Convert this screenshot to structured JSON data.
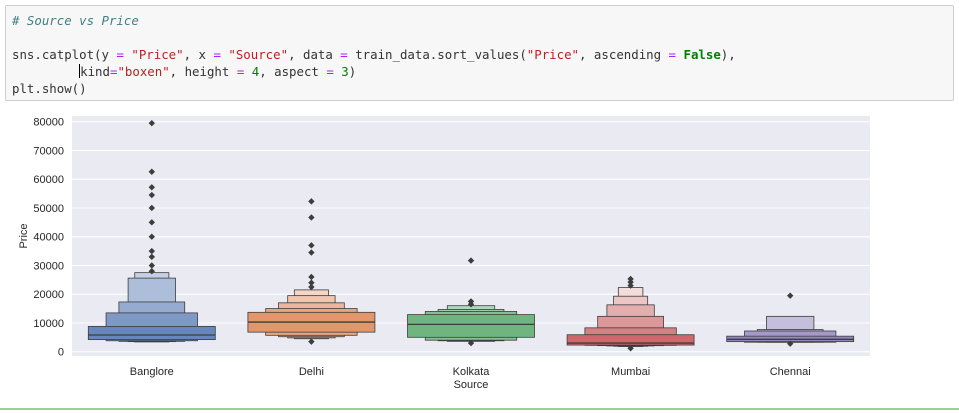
{
  "code": {
    "comment": "# Source vs Price",
    "line1": {
      "fn": "sns.catplot(y ",
      "eq": "=",
      "y_val": "\"Price\"",
      "x_part": ", x ",
      "x_val": "\"Source\"",
      "data_part": ", data ",
      "sort_part": " train_data.sort_values(",
      "sort_val": "\"Price\"",
      "asc_part": ", ascending ",
      "false_kw": "False",
      "tail": "),"
    },
    "line2": {
      "indent": "         ",
      "kind_part": "kind",
      "kind_val": "\"boxen\"",
      "height_part": ", height ",
      "height_val": "4",
      "aspect_part": ", aspect ",
      "aspect_val": "3",
      "tail": ")"
    },
    "line3": "plt.show()"
  },
  "chart_data": {
    "type": "boxen",
    "title": "",
    "xlabel": "Source",
    "ylabel": "Price",
    "ylim": [
      -1500,
      82000
    ],
    "yticks": [
      0,
      10000,
      20000,
      30000,
      40000,
      50000,
      60000,
      70000,
      80000
    ],
    "ytick_labels": [
      "0",
      "10000",
      "20000",
      "30000",
      "40000",
      "50000",
      "60000",
      "70000",
      "80000"
    ],
    "categories": [
      "Banglore",
      "Delhi",
      "Kolkata",
      "Mumbai",
      "Chennai"
    ],
    "colors": [
      "#4c72b0",
      "#dd8452",
      "#55a868",
      "#c44e52",
      "#8172b3"
    ],
    "groups": [
      {
        "name": "Banglore",
        "median": 5800,
        "boxes": [
          [
            4200,
            8800
          ],
          [
            3800,
            13500
          ],
          [
            3600,
            17300
          ],
          [
            3500,
            25600
          ],
          [
            3400,
            27500
          ]
        ],
        "outliers": [
          28000,
          30000,
          33000,
          35000,
          40000,
          45000,
          50000,
          54500,
          57200,
          62600,
          79500
        ]
      },
      {
        "name": "Delhi",
        "median": 10300,
        "boxes": [
          [
            6800,
            13700
          ],
          [
            5700,
            15000
          ],
          [
            5200,
            17000
          ],
          [
            4800,
            19500
          ],
          [
            4500,
            21500
          ]
        ],
        "outliers": [
          3500,
          22500,
          24000,
          26000,
          34500,
          37000,
          46700,
          52300
        ]
      },
      {
        "name": "Kolkata",
        "median": 9500,
        "boxes": [
          [
            5000,
            12900
          ],
          [
            4000,
            14000
          ],
          [
            3800,
            14700
          ],
          [
            3600,
            16000
          ]
        ],
        "outliers": [
          3000,
          16500,
          17500,
          31700
        ]
      },
      {
        "name": "Mumbai",
        "median": 3000,
        "boxes": [
          [
            2300,
            5900
          ],
          [
            2200,
            8300
          ],
          [
            2100,
            12300
          ],
          [
            2000,
            16300
          ],
          [
            1900,
            19300
          ],
          [
            1800,
            22300
          ]
        ],
        "outliers": [
          1200,
          23000,
          24200,
          25300
        ]
      },
      {
        "name": "Chennai",
        "median": 4300,
        "boxes": [
          [
            3500,
            5400
          ],
          [
            3300,
            7200
          ],
          [
            3300,
            7700
          ],
          [
            3300,
            12300
          ]
        ],
        "outliers": [
          2800,
          19500
        ]
      }
    ]
  }
}
